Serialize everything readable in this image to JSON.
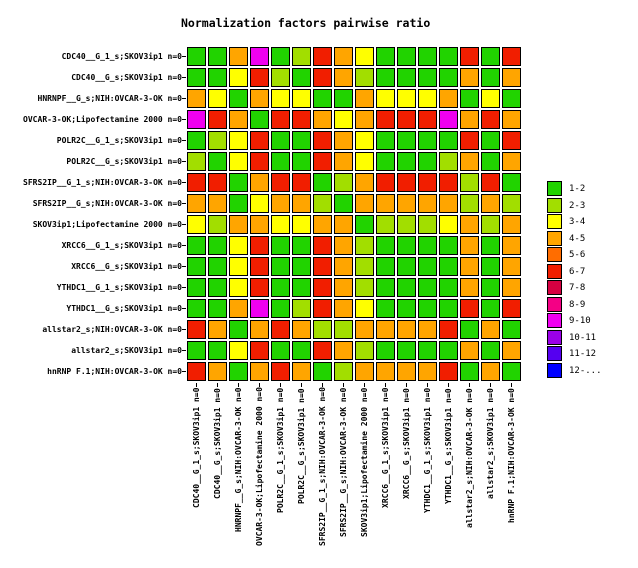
{
  "chart_data": {
    "type": "heatmap",
    "title": "Normalization factors pairwise ratio",
    "legend_position": "right",
    "grid": "off",
    "row_labels": [
      "CDC40__G_1_s;SKOV3ip1 n=0",
      "CDC40__G_s;SKOV3ip1 n=0",
      "HNRNPF__G_s;NIH:OVCAR-3-OK n=0",
      "OVCAR-3-OK;Lipofectamine 2000 n=0",
      "POLR2C__G_1_s;SKOV3ip1 n=0",
      "POLR2C__G_s;SKOV3ip1 n=0",
      "SFRS2IP__G_1_s;NIH:OVCAR-3-OK n=0",
      "SFRS2IP__G_s;NIH:OVCAR-3-OK n=0",
      "SKOV3ip1;Lipofectamine 2000 n=0",
      "XRCC6__G_1_s;SKOV3ip1 n=0",
      "XRCC6__G_s;SKOV3ip1 n=0",
      "YTHDC1__G_1_s;SKOV3ip1 n=0",
      "YTHDC1__G_s;SKOV3ip1 n=0",
      "allstar2_s;NIH:OVCAR-3-OK n=0",
      "allstar2_s;SKOV3ip1 n=0",
      "hnRNP F.1;NIH:OVCAR-3-OK n=0"
    ],
    "col_labels": [
      "CDC40__G_1_s;SKOV3ip1 n=0",
      "CDC40__G_s;SKOV3ip1 n=0",
      "HNRNPF__G_s;NIH:OVCAR-3-OK n=0",
      "OVCAR-3-OK;Lipofectamine 2000 n=0",
      "POLR2C__G_1_s;SKOV3ip1 n=0",
      "POLR2C__G_s;SKOV3ip1 n=0",
      "SFRS2IP__G_1_s;NIH:OVCAR-3-OK n=0",
      "SFRS2IP__G_s;NIH:OVCAR-3-OK n=0",
      "SKOV3ip1;Lipofectamine 2000 n=0",
      "XRCC6__G_1_s;SKOV3ip1 n=0",
      "XRCC6__G_s;SKOV3ip1 n=0",
      "YTHDC1__G_1_s;SKOV3ip1 n=0",
      "YTHDC1__G_s;SKOV3ip1 n=0",
      "allstar2_s;NIH:OVCAR-3-OK n=0",
      "allstar2_s;SKOV3ip1 n=0",
      "hnRNP F.1;NIH:OVCAR-3-OK n=0"
    ],
    "values_are": "pairwise normalization-factor ratio bins",
    "cells": [
      [
        "1-2",
        "1-2",
        "4-5",
        "9-10",
        "1-2",
        "2-3",
        "6-7",
        "4-5",
        "3-4",
        "1-2",
        "1-2",
        "1-2",
        "1-2",
        "6-7",
        "1-2",
        "6-7"
      ],
      [
        "1-2",
        "1-2",
        "3-4",
        "6-7",
        "2-3",
        "1-2",
        "6-7",
        "4-5",
        "2-3",
        "1-2",
        "1-2",
        "1-2",
        "1-2",
        "4-5",
        "1-2",
        "4-5"
      ],
      [
        "4-5",
        "3-4",
        "1-2",
        "4-5",
        "3-4",
        "3-4",
        "1-2",
        "1-2",
        "4-5",
        "3-4",
        "3-4",
        "3-4",
        "4-5",
        "1-2",
        "3-4",
        "1-2"
      ],
      [
        "9-10",
        "6-7",
        "4-5",
        "1-2",
        "6-7",
        "6-7",
        "4-5",
        "3-4",
        "4-5",
        "6-7",
        "6-7",
        "6-7",
        "9-10",
        "4-5",
        "6-7",
        "4-5"
      ],
      [
        "1-2",
        "2-3",
        "3-4",
        "6-7",
        "1-2",
        "1-2",
        "6-7",
        "4-5",
        "3-4",
        "1-2",
        "1-2",
        "1-2",
        "1-2",
        "6-7",
        "1-2",
        "6-7"
      ],
      [
        "2-3",
        "1-2",
        "3-4",
        "6-7",
        "1-2",
        "1-2",
        "6-7",
        "4-5",
        "3-4",
        "1-2",
        "1-2",
        "1-2",
        "2-3",
        "4-5",
        "1-2",
        "4-5"
      ],
      [
        "6-7",
        "6-7",
        "1-2",
        "4-5",
        "6-7",
        "6-7",
        "1-2",
        "2-3",
        "4-5",
        "6-7",
        "6-7",
        "6-7",
        "6-7",
        "2-3",
        "6-7",
        "1-2"
      ],
      [
        "4-5",
        "4-5",
        "1-2",
        "3-4",
        "4-5",
        "4-5",
        "2-3",
        "1-2",
        "4-5",
        "4-5",
        "4-5",
        "4-5",
        "4-5",
        "2-3",
        "4-5",
        "2-3"
      ],
      [
        "3-4",
        "2-3",
        "4-5",
        "4-5",
        "3-4",
        "3-4",
        "4-5",
        "4-5",
        "1-2",
        "2-3",
        "2-3",
        "2-3",
        "3-4",
        "4-5",
        "2-3",
        "4-5"
      ],
      [
        "1-2",
        "1-2",
        "3-4",
        "6-7",
        "1-2",
        "1-2",
        "6-7",
        "4-5",
        "2-3",
        "1-2",
        "1-2",
        "1-2",
        "1-2",
        "4-5",
        "1-2",
        "4-5"
      ],
      [
        "1-2",
        "1-2",
        "3-4",
        "6-7",
        "1-2",
        "1-2",
        "6-7",
        "4-5",
        "2-3",
        "1-2",
        "1-2",
        "1-2",
        "1-2",
        "4-5",
        "1-2",
        "4-5"
      ],
      [
        "1-2",
        "1-2",
        "3-4",
        "6-7",
        "1-2",
        "1-2",
        "6-7",
        "4-5",
        "2-3",
        "1-2",
        "1-2",
        "1-2",
        "1-2",
        "4-5",
        "1-2",
        "4-5"
      ],
      [
        "1-2",
        "1-2",
        "4-5",
        "9-10",
        "1-2",
        "2-3",
        "6-7",
        "4-5",
        "3-4",
        "1-2",
        "1-2",
        "1-2",
        "1-2",
        "6-7",
        "1-2",
        "6-7"
      ],
      [
        "6-7",
        "4-5",
        "1-2",
        "4-5",
        "6-7",
        "4-5",
        "2-3",
        "2-3",
        "4-5",
        "4-5",
        "4-5",
        "4-5",
        "6-7",
        "1-2",
        "4-5",
        "1-2"
      ],
      [
        "1-2",
        "1-2",
        "3-4",
        "6-7",
        "1-2",
        "1-2",
        "6-7",
        "4-5",
        "2-3",
        "1-2",
        "1-2",
        "1-2",
        "1-2",
        "4-5",
        "1-2",
        "4-5"
      ],
      [
        "6-7",
        "4-5",
        "1-2",
        "4-5",
        "6-7",
        "4-5",
        "1-2",
        "2-3",
        "4-5",
        "4-5",
        "4-5",
        "4-5",
        "6-7",
        "1-2",
        "4-5",
        "1-2"
      ]
    ],
    "palette": {
      "1-2": "#21D300",
      "2-3": "#A2DE00",
      "3-4": "#FFFF00",
      "4-5": "#FFA500",
      "5-6": "#FF6D00",
      "6-7": "#F11E00",
      "7-8": "#D60041",
      "8-9": "#F40085",
      "9-10": "#F000F0",
      "10-11": "#9B00E8",
      "11-12": "#5500F0",
      "12-...": "#0000FF"
    },
    "legend": {
      "entries": [
        {
          "label": "1-2",
          "color": "#21D300"
        },
        {
          "label": "2-3",
          "color": "#A2DE00"
        },
        {
          "label": "3-4",
          "color": "#FFFF00"
        },
        {
          "label": "4-5",
          "color": "#FFA500"
        },
        {
          "label": "5-6",
          "color": "#FF6D00"
        },
        {
          "label": "6-7",
          "color": "#F11E00"
        },
        {
          "label": "7-8",
          "color": "#D60041"
        },
        {
          "label": "8-9",
          "color": "#F40085"
        },
        {
          "label": "9-10",
          "color": "#F000F0"
        },
        {
          "label": "10-11",
          "color": "#9B00E8"
        },
        {
          "label": "11-12",
          "color": "#5500F0"
        },
        {
          "label": "12-...",
          "color": "#0000FF"
        }
      ]
    }
  }
}
